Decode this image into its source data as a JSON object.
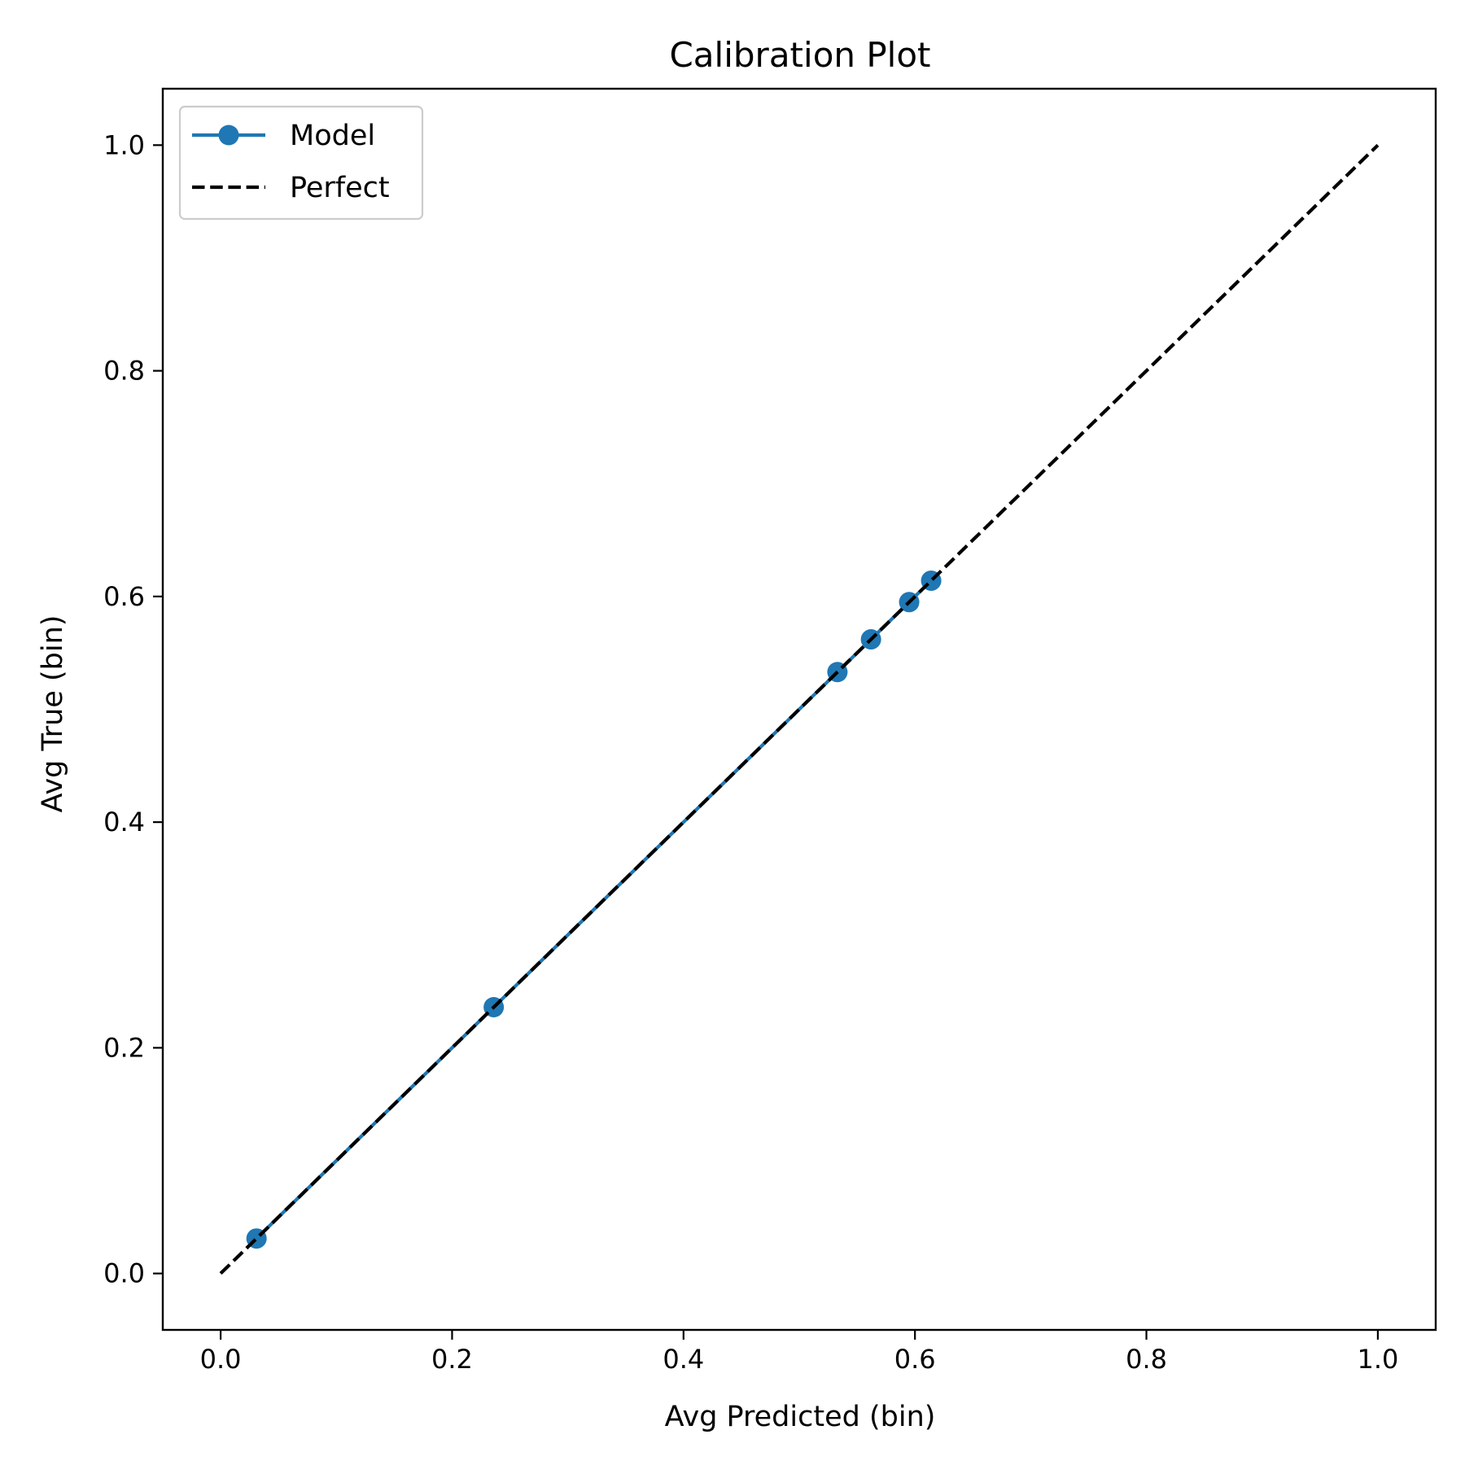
{
  "chart_data": {
    "type": "line",
    "title": "Calibration Plot",
    "xlabel": "Avg Predicted (bin)",
    "ylabel": "Avg True (bin)",
    "xlim": [
      -0.05,
      1.05
    ],
    "ylim": [
      -0.05,
      1.05
    ],
    "x_ticks": [
      0.0,
      0.2,
      0.4,
      0.6,
      0.8,
      1.0
    ],
    "y_ticks": [
      0.0,
      0.2,
      0.4,
      0.6,
      0.8,
      1.0
    ],
    "x_tick_labels": [
      "0.0",
      "0.2",
      "0.4",
      "0.6",
      "0.8",
      "1.0"
    ],
    "y_tick_labels": [
      "0.0",
      "0.2",
      "0.4",
      "0.6",
      "0.8",
      "1.0"
    ],
    "grid": false,
    "legend_position": "top-left",
    "series": [
      {
        "name": "Model",
        "style": "solid line with circle markers",
        "color": "#1f77b4",
        "x": [
          0.031,
          0.236,
          0.533,
          0.562,
          0.595,
          0.614
        ],
        "y": [
          0.031,
          0.236,
          0.533,
          0.562,
          0.595,
          0.614
        ]
      },
      {
        "name": "Perfect",
        "style": "dashed line",
        "color": "#000000",
        "x": [
          0.0,
          1.0
        ],
        "y": [
          0.0,
          1.0
        ]
      }
    ]
  }
}
